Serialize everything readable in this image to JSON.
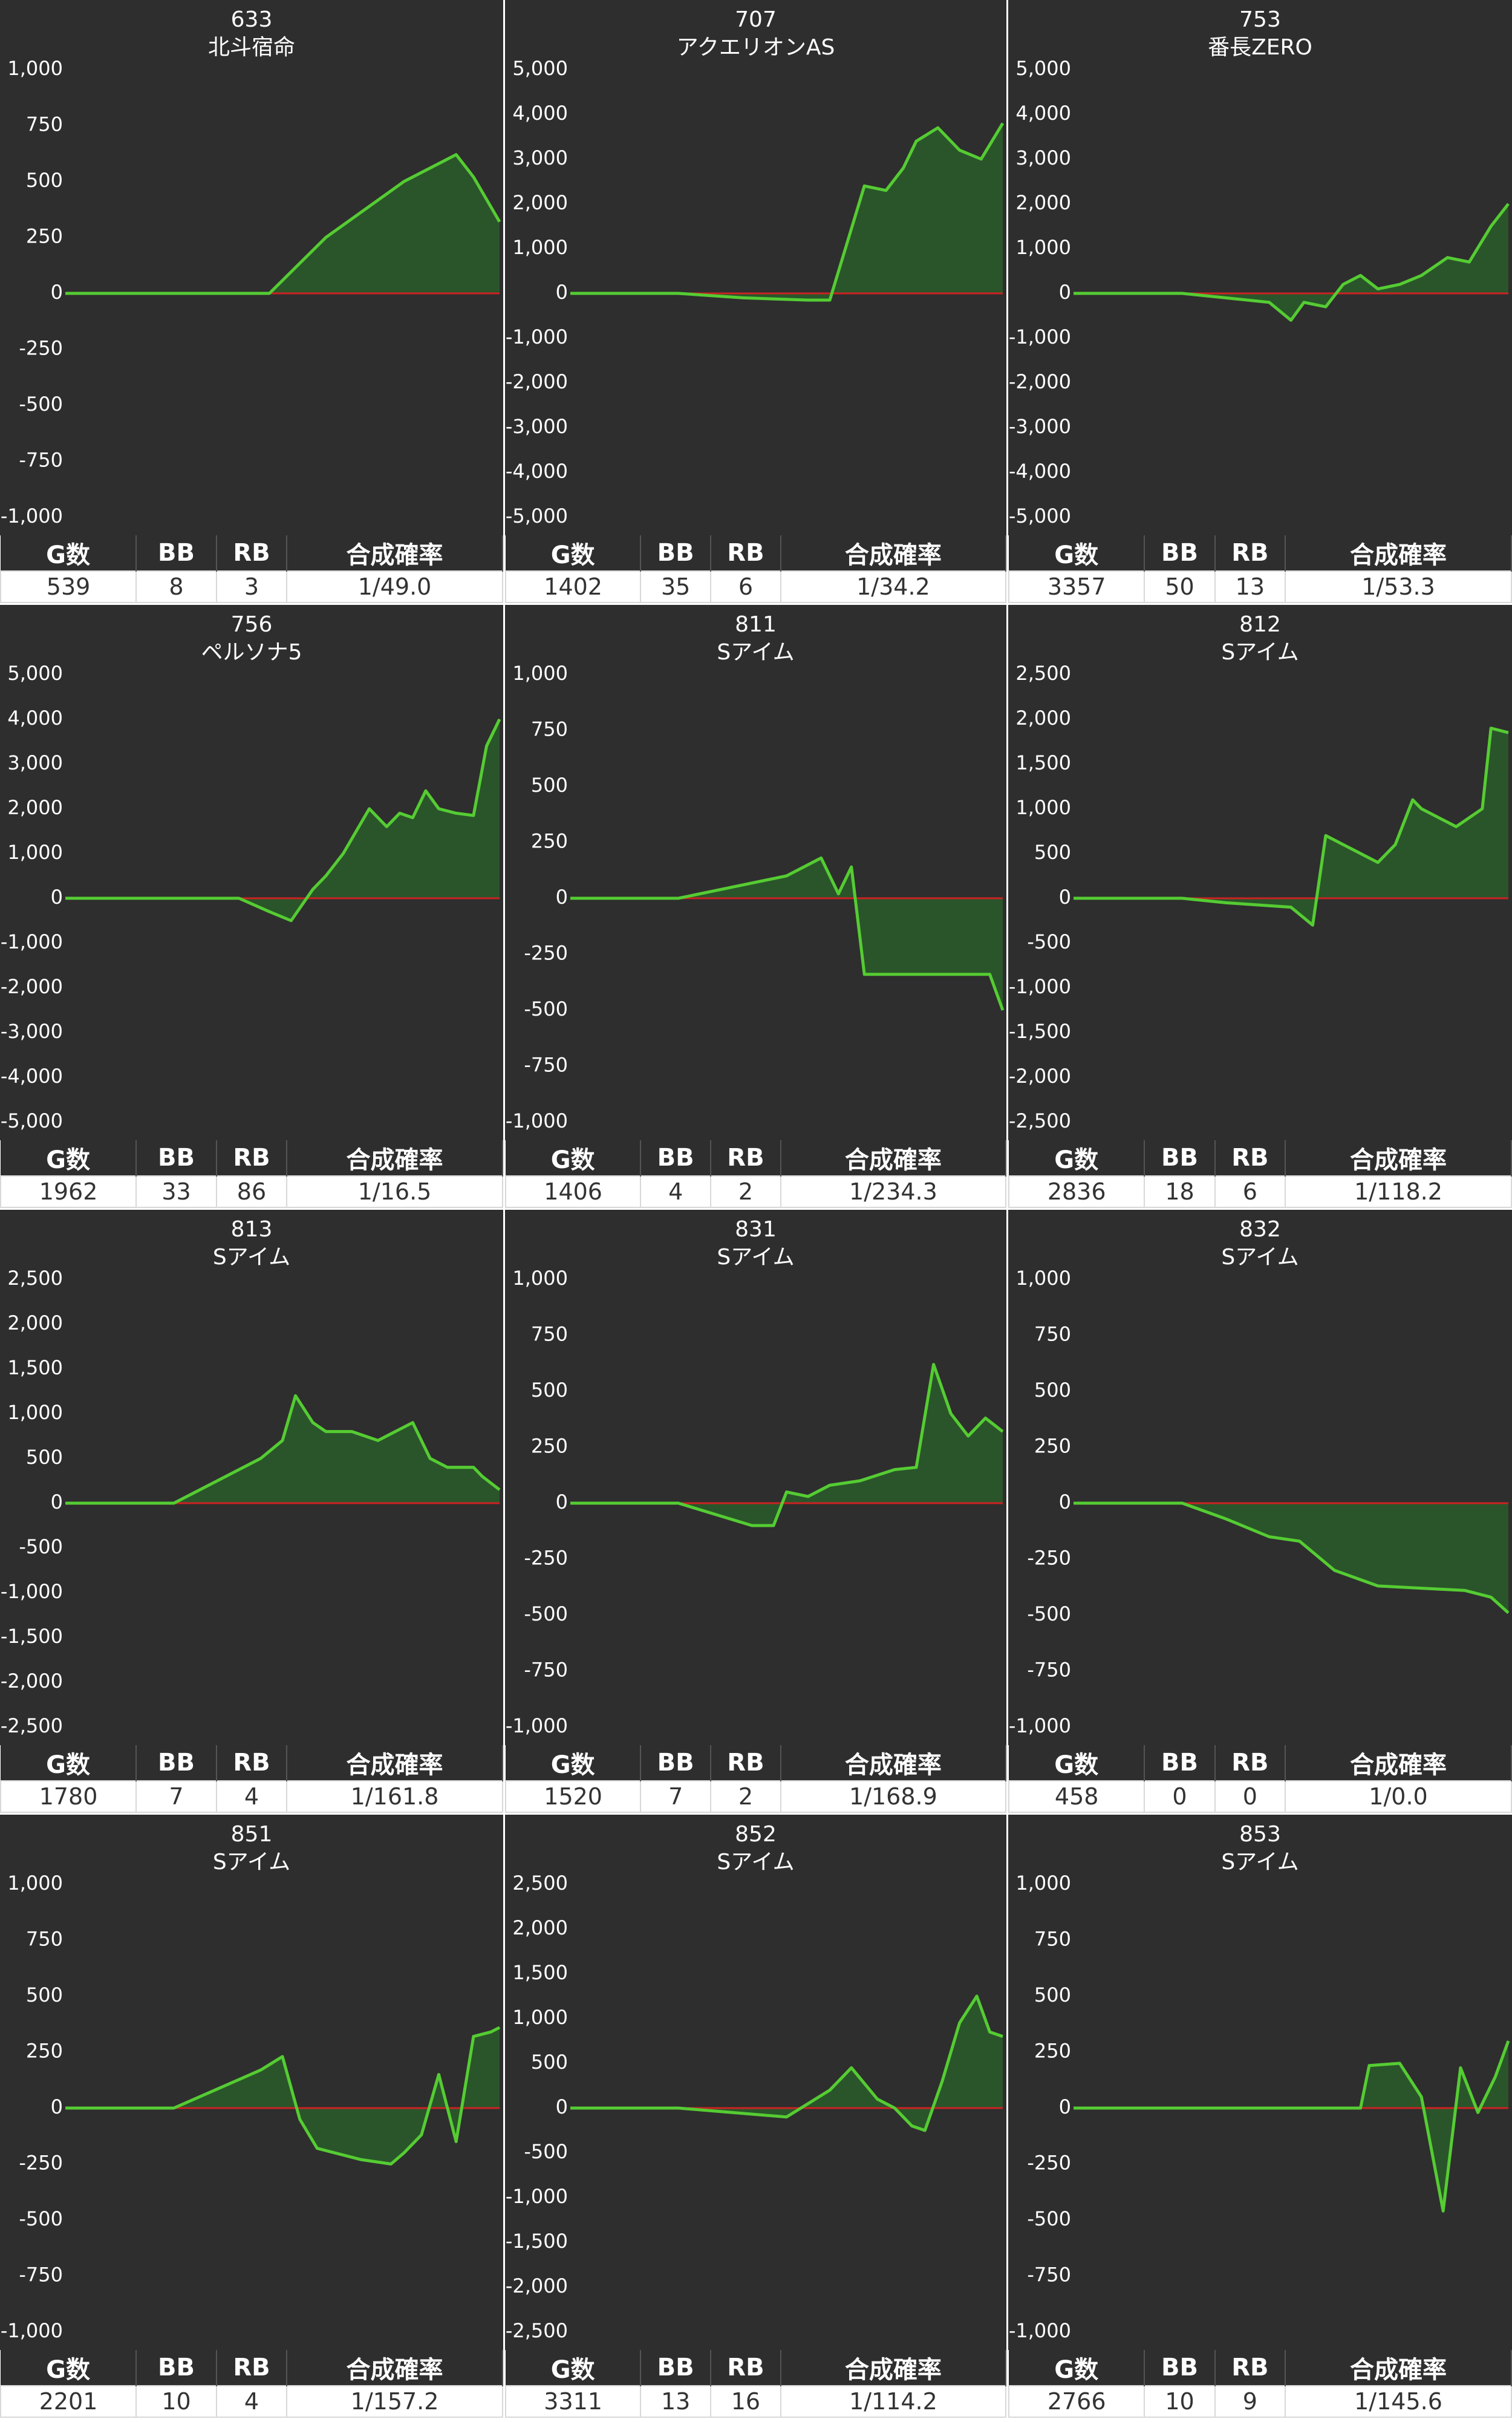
{
  "colors": {
    "background": "#2e2e2e",
    "line": "#55cc33",
    "fill": "#2a5a2a",
    "zero_line": "#cc2222",
    "text": "#ffffff"
  },
  "table_headers": {
    "games": "G数",
    "bb": "BB",
    "rb": "RB",
    "rate": "合成確率"
  },
  "panels": [
    {
      "machine_no": "633",
      "machine_name": "北斗宿命",
      "games": "539",
      "bb": "8",
      "rb": "3",
      "rate": "1/49.0"
    },
    {
      "machine_no": "707",
      "machine_name": "アクエリオンAS",
      "games": "1402",
      "bb": "35",
      "rb": "6",
      "rate": "1/34.2"
    },
    {
      "machine_no": "753",
      "machine_name": "番長ZERO",
      "games": "3357",
      "bb": "50",
      "rb": "13",
      "rate": "1/53.3"
    },
    {
      "machine_no": "756",
      "machine_name": "ペルソナ5",
      "games": "1962",
      "bb": "33",
      "rb": "86",
      "rate": "1/16.5"
    },
    {
      "machine_no": "811",
      "machine_name": "Sアイム",
      "games": "1406",
      "bb": "4",
      "rb": "2",
      "rate": "1/234.3"
    },
    {
      "machine_no": "812",
      "machine_name": "Sアイム",
      "games": "2836",
      "bb": "18",
      "rb": "6",
      "rate": "1/118.2"
    },
    {
      "machine_no": "813",
      "machine_name": "Sアイム",
      "games": "1780",
      "bb": "7",
      "rb": "4",
      "rate": "1/161.8"
    },
    {
      "machine_no": "831",
      "machine_name": "Sアイム",
      "games": "1520",
      "bb": "7",
      "rb": "2",
      "rate": "1/168.9"
    },
    {
      "machine_no": "832",
      "machine_name": "Sアイム",
      "games": "458",
      "bb": "0",
      "rb": "0",
      "rate": "1/0.0"
    },
    {
      "machine_no": "851",
      "machine_name": "Sアイム",
      "games": "2201",
      "bb": "10",
      "rb": "4",
      "rate": "1/157.2"
    },
    {
      "machine_no": "852",
      "machine_name": "Sアイム",
      "games": "3311",
      "bb": "13",
      "rb": "16",
      "rate": "1/114.2"
    },
    {
      "machine_no": "853",
      "machine_name": "Sアイム",
      "games": "2766",
      "bb": "10",
      "rb": "9",
      "rate": "1/145.6"
    }
  ],
  "chart_data": [
    {
      "type": "area",
      "ylim": [
        -1000,
        1000
      ],
      "yticks": [
        "1,000",
        "750",
        "500",
        "250",
        "0",
        "-250",
        "-500",
        "-750",
        "-1,000"
      ],
      "x": [
        0,
        0.2,
        0.4,
        0.47,
        0.6,
        0.78,
        0.9,
        0.94,
        1.0
      ],
      "y": [
        0,
        0,
        0,
        0,
        250,
        500,
        620,
        520,
        320
      ]
    },
    {
      "type": "area",
      "ylim": [
        -5000,
        5000
      ],
      "yticks": [
        "5,000",
        "4,000",
        "3,000",
        "2,000",
        "1,000",
        "0",
        "-1,000",
        "-2,000",
        "-3,000",
        "-4,000",
        "-5,000"
      ],
      "x": [
        0,
        0.25,
        0.4,
        0.55,
        0.6,
        0.68,
        0.73,
        0.77,
        0.8,
        0.85,
        0.9,
        0.95,
        1.0
      ],
      "y": [
        0,
        0,
        -100,
        -150,
        -150,
        2400,
        2300,
        2800,
        3400,
        3700,
        3200,
        3000,
        3800
      ]
    },
    {
      "type": "area",
      "ylim": [
        -5000,
        5000
      ],
      "yticks": [
        "5,000",
        "4,000",
        "3,000",
        "2,000",
        "1,000",
        "0",
        "-1,000",
        "-2,000",
        "-3,000",
        "-4,000",
        "-5,000"
      ],
      "x": [
        0,
        0.25,
        0.35,
        0.45,
        0.5,
        0.53,
        0.58,
        0.62,
        0.66,
        0.7,
        0.75,
        0.8,
        0.86,
        0.91,
        0.96,
        1.0
      ],
      "y": [
        0,
        0,
        -100,
        -200,
        -600,
        -200,
        -300,
        200,
        400,
        100,
        200,
        400,
        800,
        700,
        1500,
        2000
      ]
    },
    {
      "type": "area",
      "ylim": [
        -5000,
        5000
      ],
      "yticks": [
        "5,000",
        "4,000",
        "3,000",
        "2,000",
        "1,000",
        "0",
        "-1,000",
        "-2,000",
        "-3,000",
        "-4,000",
        "-5,000"
      ],
      "x": [
        0,
        0.25,
        0.4,
        0.47,
        0.52,
        0.57,
        0.6,
        0.64,
        0.67,
        0.7,
        0.74,
        0.77,
        0.8,
        0.83,
        0.86,
        0.9,
        0.94,
        0.97,
        1.0
      ],
      "y": [
        0,
        0,
        0,
        -300,
        -500,
        200,
        500,
        1000,
        1500,
        2000,
        1600,
        1900,
        1800,
        2400,
        2000,
        1900,
        1850,
        3400,
        4000
      ]
    },
    {
      "type": "area",
      "ylim": [
        -1000,
        1000
      ],
      "yticks": [
        "1,000",
        "750",
        "500",
        "250",
        "0",
        "-250",
        "-500",
        "-750",
        "-1,000"
      ],
      "x": [
        0,
        0.25,
        0.5,
        0.58,
        0.62,
        0.65,
        0.68,
        0.8,
        0.9,
        0.97,
        1.0
      ],
      "y": [
        0,
        0,
        100,
        180,
        20,
        140,
        -340,
        -340,
        -340,
        -340,
        -500
      ]
    },
    {
      "type": "area",
      "ylim": [
        -2500,
        2500
      ],
      "yticks": [
        "2,500",
        "2,000",
        "1,500",
        "1,000",
        "500",
        "0",
        "-500",
        "-1,000",
        "-1,500",
        "-2,000",
        "-2,500"
      ],
      "x": [
        0,
        0.25,
        0.35,
        0.5,
        0.55,
        0.58,
        0.62,
        0.66,
        0.7,
        0.74,
        0.78,
        0.8,
        0.84,
        0.88,
        0.91,
        0.94,
        0.96,
        1.0
      ],
      "y": [
        0,
        0,
        -50,
        -100,
        -300,
        700,
        600,
        500,
        400,
        600,
        1100,
        1000,
        900,
        800,
        900,
        1000,
        1900,
        1850
      ]
    },
    {
      "type": "area",
      "ylim": [
        -2500,
        2500
      ],
      "yticks": [
        "2,500",
        "2,000",
        "1,500",
        "1,000",
        "500",
        "0",
        "-500",
        "-1,000",
        "-1,500",
        "-2,000",
        "-2,500"
      ],
      "x": [
        0,
        0.25,
        0.45,
        0.5,
        0.53,
        0.57,
        0.6,
        0.66,
        0.72,
        0.8,
        0.84,
        0.88,
        0.94,
        0.96,
        1.0
      ],
      "y": [
        0,
        0,
        500,
        700,
        1200,
        900,
        800,
        800,
        700,
        900,
        500,
        400,
        400,
        300,
        150
      ]
    },
    {
      "type": "area",
      "ylim": [
        -1000,
        1000
      ],
      "yticks": [
        "1,000",
        "750",
        "500",
        "250",
        "0",
        "-250",
        "-500",
        "-750",
        "-1,000"
      ],
      "x": [
        0,
        0.25,
        0.42,
        0.47,
        0.5,
        0.55,
        0.6,
        0.67,
        0.75,
        0.8,
        0.84,
        0.88,
        0.92,
        0.96,
        1.0
      ],
      "y": [
        0,
        0,
        -100,
        -100,
        50,
        30,
        80,
        100,
        150,
        160,
        620,
        400,
        300,
        380,
        320
      ]
    },
    {
      "type": "area",
      "ylim": [
        -1000,
        1000
      ],
      "yticks": [
        "1,000",
        "750",
        "500",
        "250",
        "0",
        "-250",
        "-500",
        "-750",
        "-1,000"
      ],
      "x": [
        0,
        0.25,
        0.35,
        0.45,
        0.52,
        0.6,
        0.7,
        0.8,
        0.9,
        0.96,
        1.0
      ],
      "y": [
        0,
        0,
        -70,
        -150,
        -170,
        -300,
        -370,
        -380,
        -390,
        -420,
        -490
      ]
    },
    {
      "type": "area",
      "ylim": [
        -1000,
        1000
      ],
      "yticks": [
        "1,000",
        "750",
        "500",
        "250",
        "0",
        "-250",
        "-500",
        "-750",
        "-1,000"
      ],
      "x": [
        0,
        0.25,
        0.45,
        0.5,
        0.54,
        0.58,
        0.68,
        0.75,
        0.78,
        0.82,
        0.86,
        0.9,
        0.94,
        0.98,
        1.0
      ],
      "y": [
        0,
        0,
        170,
        230,
        -50,
        -180,
        -230,
        -250,
        -200,
        -120,
        150,
        -150,
        320,
        340,
        360
      ]
    },
    {
      "type": "area",
      "ylim": [
        -2500,
        2500
      ],
      "yticks": [
        "2,500",
        "2,000",
        "1,500",
        "1,000",
        "500",
        "0",
        "-500",
        "-1,000",
        "-1,500",
        "-2,000",
        "-2,500"
      ],
      "x": [
        0,
        0.25,
        0.5,
        0.6,
        0.65,
        0.71,
        0.75,
        0.79,
        0.82,
        0.86,
        0.9,
        0.94,
        0.97,
        1.0
      ],
      "y": [
        0,
        0,
        -100,
        200,
        450,
        100,
        0,
        -200,
        -250,
        300,
        950,
        1250,
        850,
        800
      ]
    },
    {
      "type": "area",
      "ylim": [
        -1000,
        1000
      ],
      "yticks": [
        "1,000",
        "750",
        "500",
        "250",
        "0",
        "-250",
        "-500",
        "-750",
        "-1,000"
      ],
      "x": [
        0,
        0.25,
        0.45,
        0.6,
        0.66,
        0.68,
        0.75,
        0.8,
        0.85,
        0.89,
        0.93,
        0.97,
        1.0
      ],
      "y": [
        0,
        0,
        0,
        0,
        0,
        190,
        200,
        50,
        -460,
        180,
        -20,
        140,
        300
      ]
    }
  ]
}
